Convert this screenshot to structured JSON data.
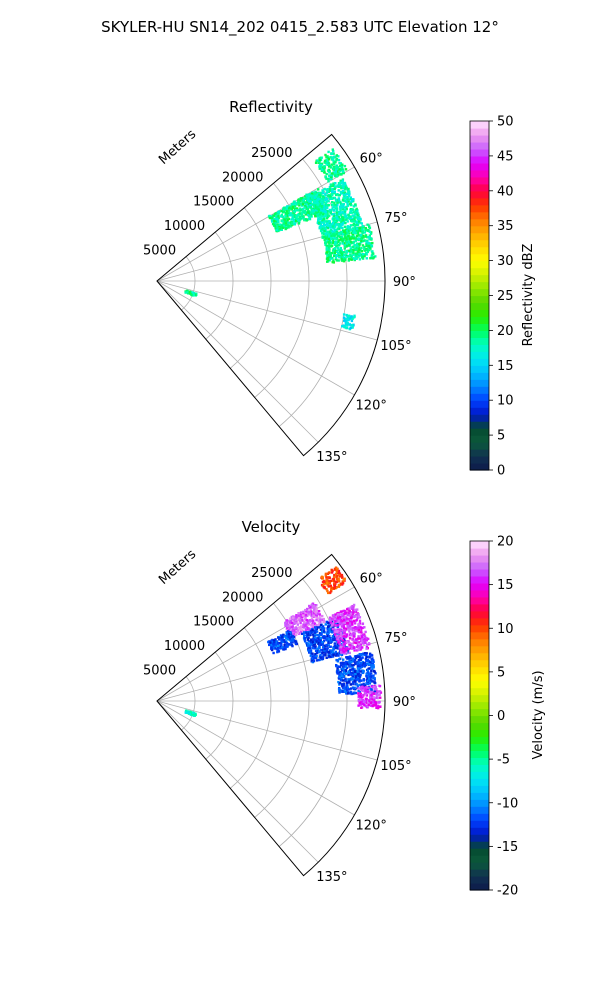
{
  "figure": {
    "title": "SKYLER-HU  SN14_202  0415_2.583 UTC Elevation 12°"
  },
  "chart_data": [
    {
      "type": "polar-sector",
      "title": "Reflectivity",
      "radial_axis_label": "Meters",
      "radial_ticks": [
        "5000",
        "10000",
        "15000",
        "20000",
        "25000"
      ],
      "radial_range": [
        0,
        30000
      ],
      "angle_ticks": [
        "60°",
        "75°",
        "90°",
        "105°",
        "120°",
        "135°"
      ],
      "angle_range_deg": [
        50,
        140
      ],
      "grid": true,
      "colorbar": {
        "label": "Reflectivity dBZ",
        "ticks": [
          "0",
          "5",
          "10",
          "15",
          "20",
          "25",
          "30",
          "35",
          "40",
          "45",
          "50"
        ],
        "range": [
          0,
          50
        ]
      },
      "echo_regions": [
        {
          "azimuth_range": [
            53,
            60
          ],
          "range_m": [
            26000,
            29000
          ],
          "value": 19
        },
        {
          "azimuth_range": [
            60,
            68
          ],
          "range_m": [
            17000,
            24500
          ],
          "value": 19
        },
        {
          "azimuth_range": [
            61,
            76
          ],
          "range_m": [
            22500,
            28000
          ],
          "value": 18
        },
        {
          "azimuth_range": [
            75,
            84
          ],
          "range_m": [
            22500,
            29000
          ],
          "value": 19
        },
        {
          "azimuth_range": [
            100,
            104
          ],
          "range_m": [
            25000,
            26500
          ],
          "value": 16
        },
        {
          "azimuth_range": [
            108,
            112
          ],
          "range_m": [
            4000,
            5500
          ],
          "value": 19
        }
      ]
    },
    {
      "type": "polar-sector",
      "title": "Velocity",
      "radial_axis_label": "Meters",
      "radial_ticks": [
        "5000",
        "10000",
        "15000",
        "20000",
        "25000"
      ],
      "radial_range": [
        0,
        30000
      ],
      "angle_ticks": [
        "60°",
        "75°",
        "90°",
        "105°",
        "120°",
        "135°"
      ],
      "angle_range_deg": [
        50,
        140
      ],
      "grid": true,
      "colorbar": {
        "label": "Velocity (m/s)",
        "ticks": [
          "-20",
          "-15",
          "-10",
          "-5",
          "0",
          "5",
          "10",
          "15",
          "20"
        ],
        "range": [
          -20,
          20
        ]
      },
      "echo_regions": [
        {
          "azimuth_range": [
            53,
            58
          ],
          "range_m": [
            26500,
            29500
          ],
          "value": 10
        },
        {
          "azimuth_range": [
            58,
            65
          ],
          "range_m": [
            19500,
            24500
          ],
          "value": 17
        },
        {
          "azimuth_range": [
            62,
            68
          ],
          "range_m": [
            16500,
            20000
          ],
          "value": -12
        },
        {
          "azimuth_range": [
            65,
            76
          ],
          "range_m": [
            21000,
            26000
          ],
          "value": -12
        },
        {
          "azimuth_range": [
            64,
            76
          ],
          "range_m": [
            25000,
            29000
          ],
          "value": 16
        },
        {
          "azimuth_range": [
            77,
            88
          ],
          "range_m": [
            24000,
            29000
          ],
          "value": -12
        },
        {
          "azimuth_range": [
            86,
            92
          ],
          "range_m": [
            26500,
            29500
          ],
          "value": 16
        },
        {
          "azimuth_range": [
            108,
            112
          ],
          "range_m": [
            4000,
            5500
          ],
          "value": -6
        }
      ]
    }
  ]
}
